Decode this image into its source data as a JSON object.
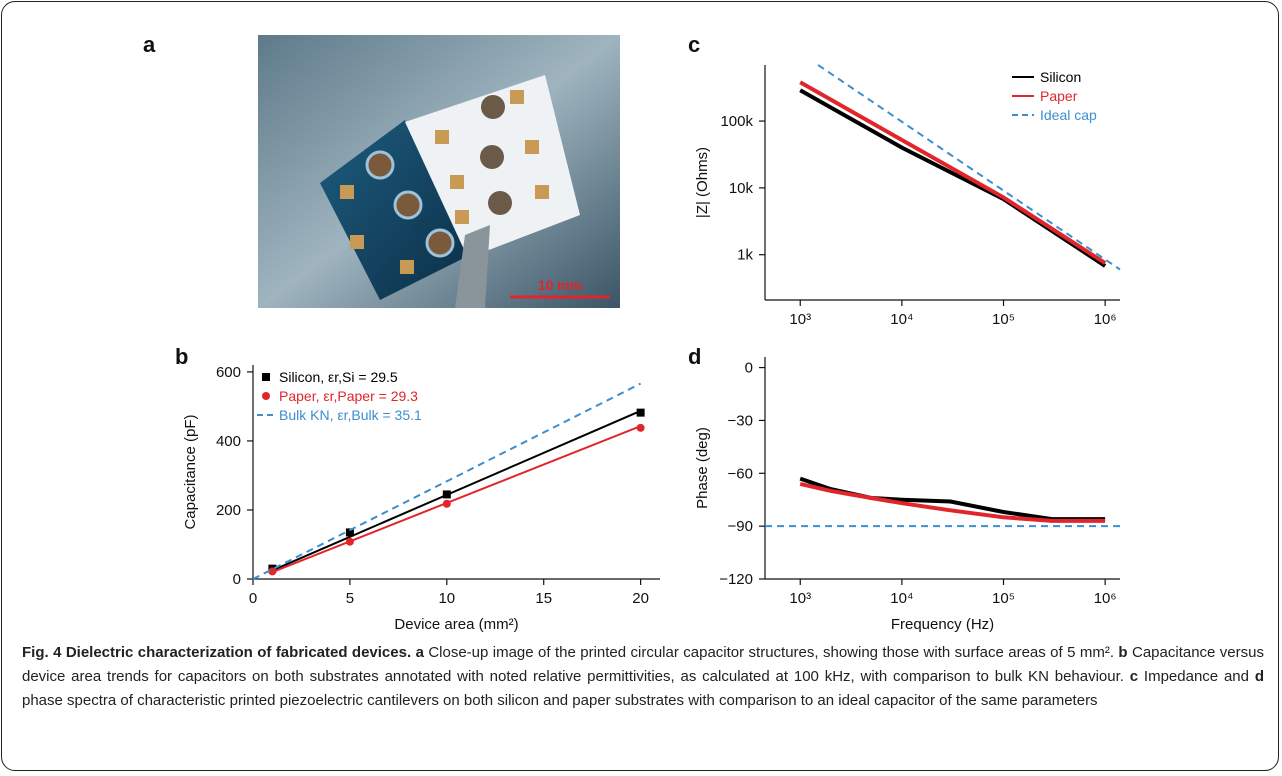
{
  "panels": [
    "a",
    "b",
    "c",
    "d"
  ],
  "photo": {
    "scale_bar": "10 mm"
  },
  "chart_data": [
    {
      "type": "scatter",
      "xlabel": "Device area (mm²)",
      "ylabel": "Capacitance (pF)",
      "xlim": [
        0,
        21
      ],
      "ylim": [
        0,
        620
      ],
      "xticks": [
        0,
        5,
        10,
        15,
        20
      ],
      "yticks": [
        0,
        200,
        400,
        600
      ],
      "legend": "upper left",
      "series": [
        {
          "name": "Silicon, εr,Si = 29.5",
          "color": "#000000",
          "marker": "square",
          "x": [
            1,
            5,
            10,
            20
          ],
          "values": [
            30,
            135,
            245,
            482
          ],
          "fit": {
            "x": [
              1,
              20
            ],
            "values": [
              25,
              487
            ]
          }
        },
        {
          "name": "Paper, εr,Paper = 29.3",
          "color": "#e0262b",
          "marker": "circle",
          "x": [
            1,
            5,
            10,
            20
          ],
          "values": [
            22,
            108,
            218,
            438
          ],
          "fit": {
            "x": [
              1,
              20
            ],
            "values": [
              20,
              443
            ]
          }
        },
        {
          "name": "Bulk KN, εr,Bulk = 35.1",
          "color": "#3b8ed0",
          "dash": true,
          "x": [
            0,
            20
          ],
          "values": [
            0,
            566
          ]
        }
      ]
    },
    {
      "type": "line",
      "ylabel": "|Z| (Ohms)",
      "log_x": true,
      "log_y": true,
      "xlim": [
        450,
        1400000
      ],
      "ylim": [
        210,
        690000
      ],
      "xticks": [
        {
          "value": 1000,
          "label": "10³"
        },
        {
          "value": 10000,
          "label": "10⁴"
        },
        {
          "value": 100000,
          "label": "10⁵"
        },
        {
          "value": 1000000,
          "label": "10⁶"
        }
      ],
      "yticks": [
        {
          "value": 1000,
          "label": "1k"
        },
        {
          "value": 10000,
          "label": "10k"
        },
        {
          "value": 100000,
          "label": "100k"
        }
      ],
      "legend": "upper right",
      "series": [
        {
          "name": "Silicon",
          "color": "#000000",
          "x": [
            1000,
            10000,
            100000,
            1000000
          ],
          "values": [
            290000,
            40000,
            6800,
            680
          ]
        },
        {
          "name": "Paper",
          "color": "#e0262b",
          "x": [
            1000,
            10000,
            100000,
            1000000
          ],
          "values": [
            380000,
            52000,
            7200,
            750
          ]
        },
        {
          "name": "Ideal cap",
          "color": "#3b8ed0",
          "dash": true,
          "x": [
            1500,
            1400000
          ],
          "values": [
            690000,
            600
          ]
        }
      ]
    },
    {
      "type": "line",
      "xlabel": "Frequency (Hz)",
      "ylabel": "Phase (deg)",
      "log_x": true,
      "xlim": [
        450,
        1400000
      ],
      "ylim": [
        -120,
        6
      ],
      "xticks": [
        {
          "value": 1000,
          "label": "10³"
        },
        {
          "value": 10000,
          "label": "10⁴"
        },
        {
          "value": 100000,
          "label": "10⁵"
        },
        {
          "value": 1000000,
          "label": "10⁶"
        }
      ],
      "yticks": [
        0,
        {
          "value": -30,
          "label": "−30"
        },
        {
          "value": -60,
          "label": "−60"
        },
        {
          "value": -90,
          "label": "−90"
        },
        {
          "value": -120,
          "label": "−120"
        }
      ],
      "series": [
        {
          "color": "#000000",
          "x": [
            1000,
            2000,
            5000,
            10000,
            30000,
            100000,
            300000,
            1000000
          ],
          "values": [
            -63,
            -69,
            -74,
            -75,
            -76,
            -82,
            -86,
            -86
          ]
        },
        {
          "color": "#e0262b",
          "x": [
            1000,
            2000,
            5000,
            10000,
            30000,
            100000,
            300000,
            1000000
          ],
          "values": [
            -66,
            -70,
            -74,
            -77,
            -81,
            -85,
            -87,
            -87
          ]
        },
        {
          "color": "#3b8ed0",
          "dash": true,
          "x": [
            450,
            1400000
          ],
          "values": [
            -90,
            -90
          ]
        }
      ]
    }
  ],
  "caption": {
    "title": "Fig. 4 Dielectric characterization of fabricated devices.",
    "runs": [
      {
        "text": "a",
        "style": "bold"
      },
      {
        "text": " Close-up image of the printed circular capacitor structures, showing those with surface areas of 5 mm². "
      },
      {
        "text": "b",
        "style": "bold"
      },
      {
        "text": " Capacitance versus device area trends for capacitors on both substrates annotated with noted relative permittivities, as calculated at 100 kHz, with comparison to bulk KN behaviour. "
      },
      {
        "text": "c",
        "style": "bold"
      },
      {
        "text": " Impedance and "
      },
      {
        "text": "d",
        "style": "bold"
      },
      {
        "text": " phase spectra of characteristic printed piezoelectric cantilevers on both silicon and paper substrates with comparison to an ideal capacitor of the same parameters"
      }
    ]
  }
}
